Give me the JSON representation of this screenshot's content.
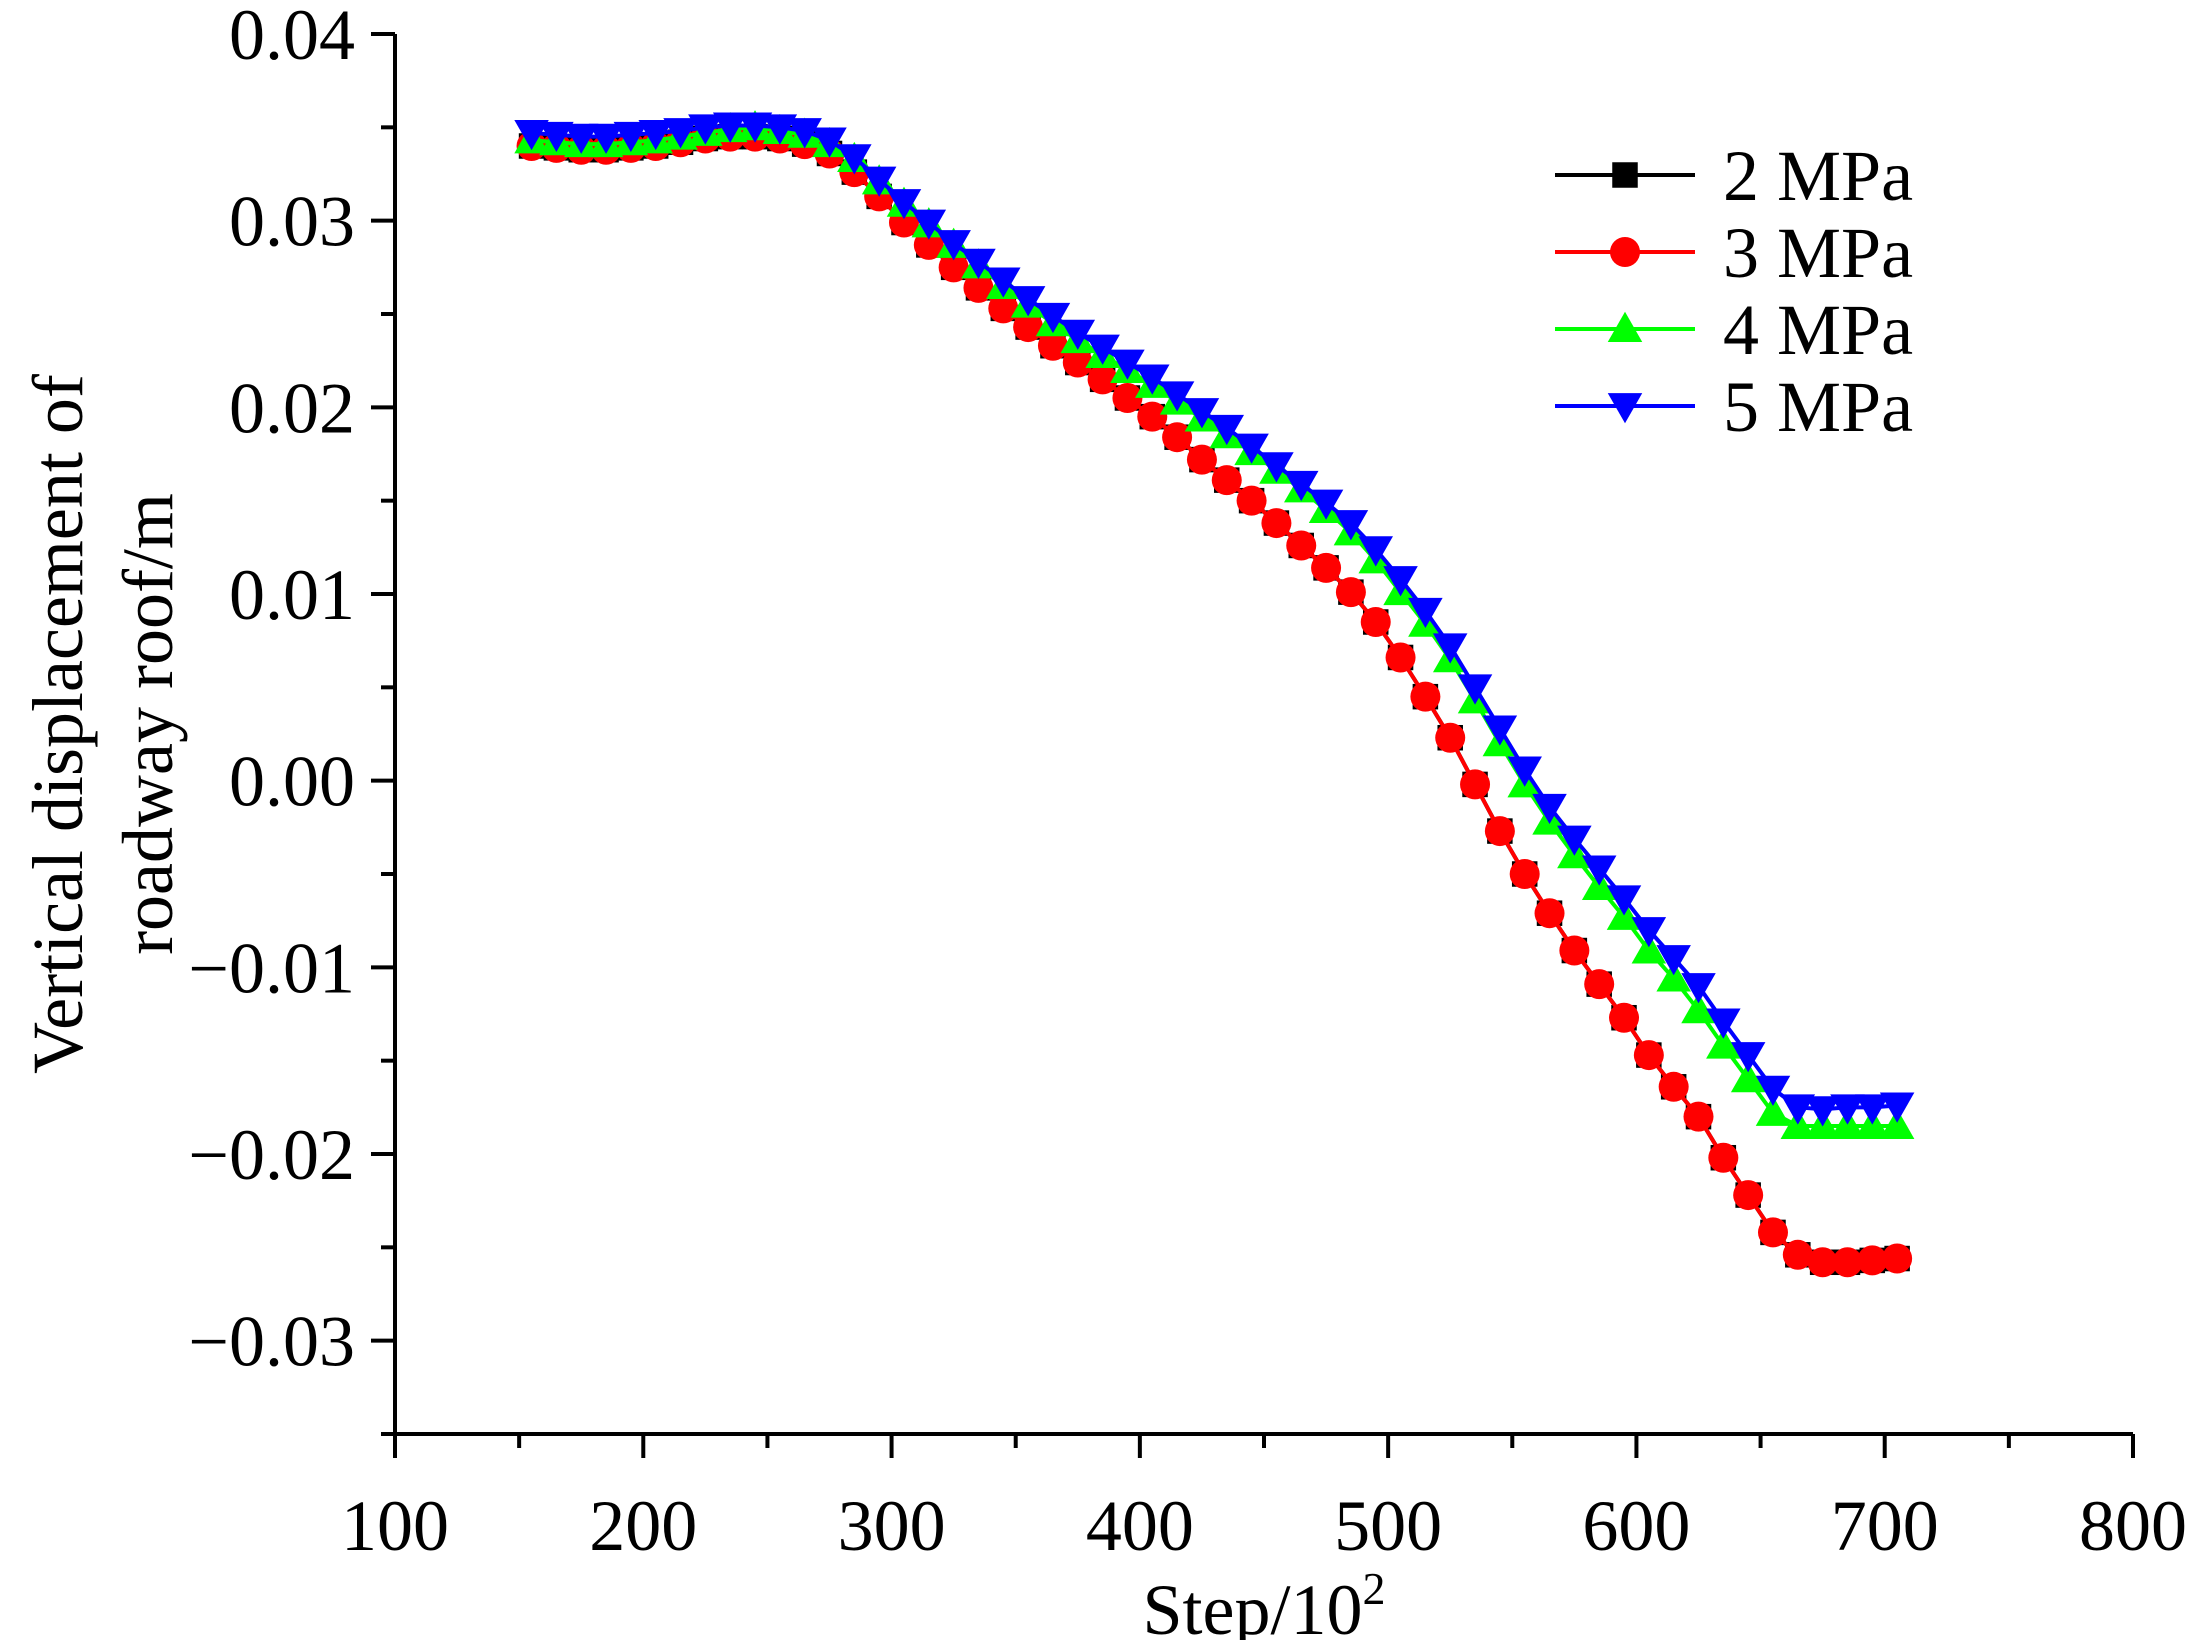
{
  "chart_data": {
    "type": "line",
    "title": "",
    "xlabel": "Step/10",
    "xlabel_sup": "2",
    "ylabel_line1": "Vertical displacement of",
    "ylabel_line2": "roadway roof/m",
    "xlim": [
      100,
      800
    ],
    "ylim": [
      -0.035,
      0.04
    ],
    "x_ticks": [
      100,
      200,
      300,
      400,
      500,
      600,
      700,
      800
    ],
    "x_tick_labels": [
      "100",
      "200",
      "300",
      "400",
      "500",
      "600",
      "700",
      "800"
    ],
    "y_ticks": [
      -0.03,
      -0.02,
      -0.01,
      0.0,
      0.01,
      0.02,
      0.03,
      0.04
    ],
    "y_tick_labels": [
      "−0.03",
      "−0.02",
      "−0.01",
      "0.00",
      "0.01",
      "0.02",
      "0.03",
      "0.04"
    ],
    "legend_position": "top-right",
    "x": [
      155,
      165,
      175,
      185,
      195,
      205,
      215,
      225,
      235,
      245,
      255,
      265,
      275,
      285,
      295,
      305,
      315,
      325,
      335,
      345,
      355,
      365,
      375,
      385,
      395,
      405,
      415,
      425,
      435,
      445,
      455,
      465,
      475,
      485,
      495,
      505,
      515,
      525,
      535,
      545,
      555,
      565,
      575,
      585,
      595,
      605,
      615,
      625,
      635,
      645,
      655,
      665,
      675,
      685,
      695,
      705
    ],
    "series": [
      {
        "name": "2 MPa",
        "color": "#000000",
        "marker": "square",
        "values": [
          0.034,
          0.0339,
          0.0338,
          0.0338,
          0.0339,
          0.034,
          0.0342,
          0.0344,
          0.0345,
          0.0345,
          0.0344,
          0.0341,
          0.0336,
          0.0326,
          0.0313,
          0.0299,
          0.0287,
          0.0275,
          0.0264,
          0.0253,
          0.0243,
          0.0233,
          0.0224,
          0.0215,
          0.0205,
          0.0195,
          0.0184,
          0.0172,
          0.0161,
          0.015,
          0.0138,
          0.0126,
          0.0114,
          0.0101,
          0.0085,
          0.0066,
          0.0045,
          0.0023,
          -0.0002,
          -0.0027,
          -0.005,
          -0.0071,
          -0.0091,
          -0.0109,
          -0.0127,
          -0.0147,
          -0.0164,
          -0.018,
          -0.0202,
          -0.0222,
          -0.0242,
          -0.0254,
          -0.0258,
          -0.0258,
          -0.0257,
          -0.0256
        ]
      },
      {
        "name": "3 MPa",
        "color": "#ff0000",
        "marker": "circle",
        "values": [
          0.034,
          0.0339,
          0.0338,
          0.0338,
          0.0339,
          0.034,
          0.0342,
          0.0344,
          0.0345,
          0.0345,
          0.0344,
          0.0341,
          0.0336,
          0.0326,
          0.0313,
          0.0299,
          0.0287,
          0.0275,
          0.0264,
          0.0253,
          0.0243,
          0.0233,
          0.0224,
          0.0215,
          0.0205,
          0.0195,
          0.0184,
          0.0172,
          0.0161,
          0.015,
          0.0138,
          0.0126,
          0.0114,
          0.0101,
          0.0085,
          0.0066,
          0.0045,
          0.0023,
          -0.0002,
          -0.0027,
          -0.005,
          -0.0071,
          -0.0091,
          -0.0109,
          -0.0127,
          -0.0147,
          -0.0164,
          -0.018,
          -0.0202,
          -0.0222,
          -0.0242,
          -0.0254,
          -0.0258,
          -0.0258,
          -0.0257,
          -0.0256
        ]
      },
      {
        "name": "4 MPa",
        "color": "#00ff00",
        "marker": "triangle-up",
        "values": [
          0.0343,
          0.0342,
          0.0341,
          0.0341,
          0.0342,
          0.0343,
          0.0345,
          0.0347,
          0.0349,
          0.035,
          0.0348,
          0.0346,
          0.0341,
          0.0333,
          0.0321,
          0.0309,
          0.0298,
          0.0287,
          0.0276,
          0.0265,
          0.0255,
          0.0245,
          0.0236,
          0.0228,
          0.022,
          0.0212,
          0.0203,
          0.0194,
          0.0185,
          0.0176,
          0.0166,
          0.0156,
          0.0145,
          0.0133,
          0.0118,
          0.0101,
          0.0084,
          0.0065,
          0.0043,
          0.002,
          -0.0002,
          -0.0022,
          -0.004,
          -0.0057,
          -0.0073,
          -0.0091,
          -0.0106,
          -0.0123,
          -0.0142,
          -0.016,
          -0.0178,
          -0.0185,
          -0.0185,
          -0.0185,
          -0.0185,
          -0.0185
        ]
      },
      {
        "name": "5 MPa",
        "color": "#0000ff",
        "marker": "triangle-down",
        "values": [
          0.0347,
          0.0346,
          0.0345,
          0.0345,
          0.0346,
          0.0347,
          0.0348,
          0.035,
          0.0351,
          0.0351,
          0.035,
          0.0348,
          0.0343,
          0.0334,
          0.0322,
          0.031,
          0.0299,
          0.0288,
          0.0278,
          0.0268,
          0.0258,
          0.0249,
          0.024,
          0.0232,
          0.0224,
          0.0216,
          0.0207,
          0.0198,
          0.0189,
          0.0179,
          0.0169,
          0.0159,
          0.0149,
          0.0138,
          0.0124,
          0.0108,
          0.0091,
          0.0072,
          0.005,
          0.0028,
          0.0006,
          -0.0014,
          -0.0031,
          -0.0047,
          -0.0063,
          -0.008,
          -0.0095,
          -0.011,
          -0.0129,
          -0.0147,
          -0.0165,
          -0.0175,
          -0.0176,
          -0.0175,
          -0.0175,
          -0.0174
        ]
      }
    ]
  }
}
